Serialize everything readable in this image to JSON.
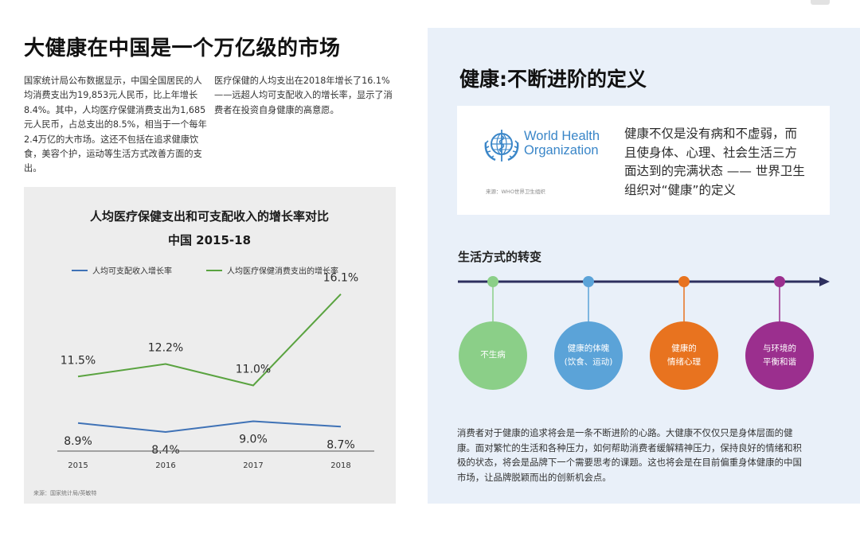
{
  "left": {
    "title": "大健康在中国是一个万亿级的市场",
    "para1": "国家统计局公布数据显示，中国全国居民的人均消费支出为19,853元人民币，比上年增长8.4%。其中，人均医疗保健消费支出为1,685元人民币，占总支出的8.5%，相当于一个每年2.4万亿的大市场。这还不包括在追求健康饮食，美容个护，运动等生活方式改善方面的支出。",
    "para2": "医疗保健的人均支出在2018年增长了16.1%——远超人均可支配收入的增长率，显示了消费者在投资自身健康的高意愿。"
  },
  "chart_data": {
    "type": "line",
    "title": "人均医疗保健支出和可支配收入的增长率对比",
    "subtitle": "中国 2015-18",
    "x": [
      "2015",
      "2016",
      "2017",
      "2018"
    ],
    "series": [
      {
        "name": "人均可支配收入增长率",
        "values": [
          8.9,
          8.4,
          9.0,
          8.7
        ],
        "labels": [
          "8.9%",
          "8.4%",
          "9.0%",
          "8.7%"
        ],
        "color": "#3f72b6"
      },
      {
        "name": "人均医疗保健消费支出的增长率",
        "values": [
          11.5,
          12.2,
          11.0,
          16.1
        ],
        "labels": [
          "11.5%",
          "12.2%",
          "11.0%",
          "16.1%"
        ],
        "color": "#5aa340"
      }
    ],
    "grid": false,
    "legend": "top",
    "source": "来源：国家统计局/英敏特"
  },
  "right": {
    "title": "健康:不断进阶的定义",
    "who": {
      "name_line1": "World Health",
      "name_line2": "Organization",
      "source": "来源：WHO世界卫生组织",
      "definition": "健康不仅是没有病和不虚弱，而且使身体、心理、社会生活三方面达到的完满状态 —— 世界卫生组织对“健康”的定义"
    },
    "lifestyle": {
      "title": "生活方式的转变",
      "stages": [
        {
          "line1": "不生病",
          "line2": "",
          "color": "#8bcf88"
        },
        {
          "line1": "健康的体魄",
          "line2": "(饮食、运动)",
          "color": "#5ba3d8"
        },
        {
          "line1": "健康的",
          "line2": "情绪心理",
          "color": "#e8731f"
        },
        {
          "line1": "与环境的",
          "line2": "平衡和谐",
          "color": "#9b2f8e"
        }
      ]
    },
    "paragraph": "消费者对于健康的追求将会是一条不断进阶的心路。大健康不仅仅只是身体层面的健康。面对繁忙的生活和各种压力，如何帮助消费者缓解精神压力，保持良好的情绪和积极的状态，将会是品牌下一个需要思考的课题。这也将会是在目前偏重身体健康的中国市场，让品牌脱颖而出的创新机会点。"
  },
  "colors": {
    "timeline": "#2d2f5e",
    "right_bg": "#e9f0f9",
    "chart_bg": "#ededed"
  }
}
